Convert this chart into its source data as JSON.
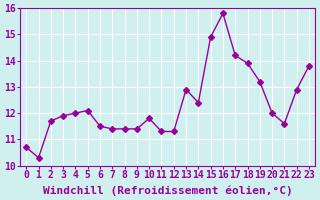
{
  "x": [
    0,
    1,
    2,
    3,
    4,
    5,
    6,
    7,
    8,
    9,
    10,
    11,
    12,
    13,
    14,
    15,
    16,
    17,
    18,
    19,
    20,
    21,
    22,
    23
  ],
  "y": [
    10.7,
    10.3,
    11.7,
    11.9,
    12.0,
    12.1,
    11.5,
    11.4,
    11.4,
    11.4,
    11.8,
    11.3,
    11.3,
    12.9,
    12.4,
    14.9,
    15.8,
    14.2,
    13.9,
    13.2,
    12.0,
    11.6,
    12.9,
    13.8
  ],
  "line_color": "#990099",
  "marker": "D",
  "marker_size": 3,
  "bg_color": "#d0f0f0",
  "grid_color": "#ffffff",
  "xlabel": "Windchill (Refroidissement éolien,°C)",
  "xlabel_fontsize": 8,
  "tick_fontsize": 7,
  "ylim": [
    10,
    16
  ],
  "xlim": [
    0,
    23
  ],
  "yticks": [
    10,
    11,
    12,
    13,
    14,
    15,
    16
  ],
  "xticks": [
    0,
    1,
    2,
    3,
    4,
    5,
    6,
    7,
    8,
    9,
    10,
    11,
    12,
    13,
    14,
    15,
    16,
    17,
    18,
    19,
    20,
    21,
    22,
    23
  ]
}
